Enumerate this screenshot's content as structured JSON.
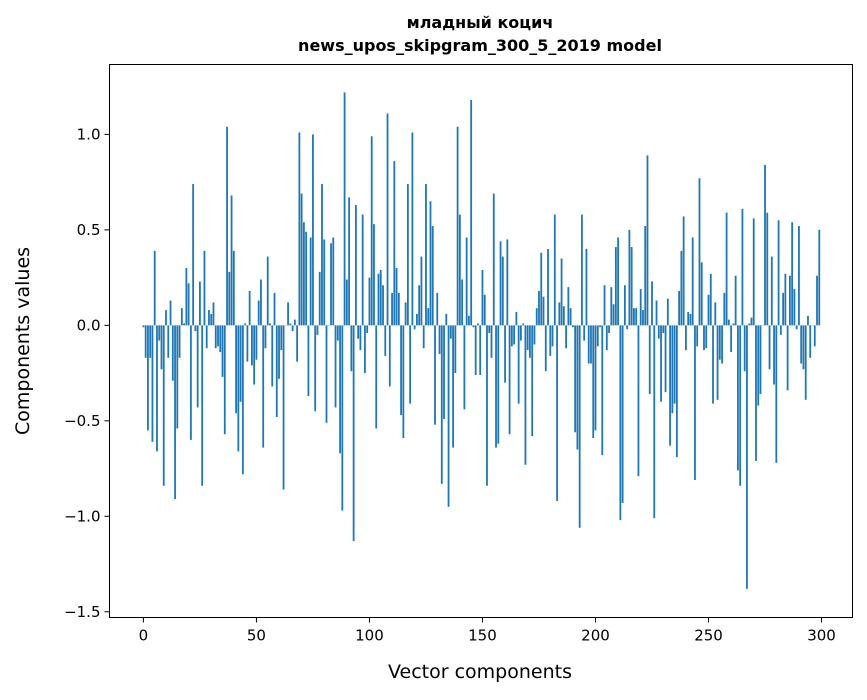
{
  "chart_data": {
    "type": "bar",
    "title": "младный коцич",
    "subtitle": "news_upos_skipgram_300_5_2019 model",
    "xlabel": "Vector components",
    "ylabel": "Components values",
    "xlim": [
      -15,
      313.7
    ],
    "ylim": [
      -1.53,
      1.366
    ],
    "xticks": [
      0,
      50,
      100,
      150,
      200,
      250,
      300
    ],
    "xtick_labels": [
      "0",
      "50",
      "100",
      "150",
      "200",
      "250",
      "300"
    ],
    "yticks": [
      -1.5,
      -1.0,
      -0.5,
      0.0,
      0.5,
      1.0
    ],
    "ytick_labels": [
      "−1.5",
      "−1.0",
      "−0.5",
      "0.0",
      "0.5",
      "1.0"
    ],
    "grid": false,
    "bar_color": "#1f77b4",
    "values": [
      -0.01,
      -0.17,
      -0.55,
      -0.17,
      -0.61,
      0.39,
      -0.66,
      -0.08,
      -0.23,
      -0.84,
      0.08,
      -0.17,
      0.13,
      -0.29,
      -0.91,
      -0.54,
      -0.17,
      0.09,
      0.01,
      0.3,
      0.22,
      -0.6,
      0.74,
      -0.03,
      -0.43,
      0.23,
      -0.84,
      0.39,
      -0.12,
      0.08,
      0.06,
      0.12,
      -0.12,
      -0.11,
      -0.14,
      -0.27,
      -0.57,
      1.04,
      0.28,
      0.68,
      0.39,
      -0.46,
      -0.66,
      -0.4,
      -0.78,
      0.01,
      -0.19,
      0.18,
      -0.21,
      -0.31,
      -0.18,
      0.13,
      0.24,
      -0.64,
      -0.12,
      0.36,
      0.01,
      -0.32,
      0.17,
      -0.48,
      -0.28,
      -0.13,
      -0.86,
      0.0,
      0.12,
      0.01,
      -0.03,
      0.03,
      -0.19,
      1.01,
      0.69,
      0.54,
      0.49,
      -0.37,
      0.46,
      1.0,
      -0.45,
      -0.05,
      0.28,
      0.74,
      0.45,
      -0.51,
      0.0,
      0.43,
      0.46,
      -0.43,
      -0.08,
      -0.67,
      -0.97,
      1.22,
      0.24,
      0.67,
      -0.24,
      -1.13,
      0.63,
      -0.07,
      -0.13,
      0.58,
      -0.25,
      -0.04,
      0.25,
      0.99,
      0.53,
      -0.54,
      0.27,
      0.29,
      0.21,
      -0.16,
      1.11,
      -0.32,
      0.17,
      0.86,
      0.3,
      0.17,
      -0.47,
      -0.59,
      0.12,
      0.74,
      -0.41,
      1.01,
      -0.02,
      0.06,
      0.21,
      0.36,
      -0.12,
      0.74,
      0.09,
      0.65,
      0.52,
      -0.52,
      0.17,
      -0.15,
      -0.83,
      -0.49,
      0.06,
      -0.95,
      -0.07,
      -0.64,
      -0.25,
      1.04,
      0.58,
      0.24,
      -0.44,
      0.46,
      0.05,
      1.18,
      -0.01,
      -0.26,
      0.01,
      -0.26,
      0.29,
      0.16,
      -0.84,
      -0.04,
      -0.17,
      0.69,
      -0.64,
      -0.62,
      0.44,
      0.36,
      -0.3,
      0.45,
      -0.57,
      -0.11,
      -0.1,
      0.07,
      -0.41,
      -0.08,
      0.01,
      -0.73,
      -0.13,
      -0.17,
      -0.58,
      -0.1,
      0.09,
      0.18,
      0.38,
      0.15,
      -0.24,
      0.4,
      -0.16,
      -0.11,
      0.58,
      -0.92,
      0.12,
      0.35,
      0.1,
      -0.12,
      0.2,
      0.09,
      -0.01,
      -0.56,
      -0.65,
      -1.06,
      0.58,
      -0.08,
      0.4,
      -0.2,
      -0.2,
      -0.59,
      -0.55,
      -0.11,
      -0.01,
      -0.68,
      0.21,
      -0.13,
      -0.04,
      0.2,
      0.11,
      0.41,
      0.46,
      -1.02,
      -0.93,
      0.21,
      -0.02,
      0.5,
      0.41,
      0.09,
      0.09,
      -0.79,
      0.19,
      0.08,
      0.52,
      0.89,
      -0.36,
      0.23,
      -1.01,
      0.13,
      -0.07,
      -0.4,
      -0.04,
      -0.35,
      0.14,
      -0.63,
      -0.46,
      -0.41,
      -0.69,
      0.18,
      0.39,
      0.57,
      -0.13,
      0.07,
      0.06,
      0.46,
      -0.81,
      -0.11,
      0.77,
      0.33,
      -0.13,
      -0.12,
      0.16,
      0.27,
      -0.41,
      0.12,
      -0.39,
      -0.18,
      -0.2,
      0.17,
      0.59,
      0.03,
      -0.14,
      0.01,
      0.26,
      -0.76,
      -0.84,
      0.61,
      -0.24,
      -1.38,
      0.01,
      0.04,
      0.56,
      -0.71,
      -0.42,
      -0.36,
      0.0,
      0.84,
      0.59,
      -0.23,
      0.36,
      -0.31,
      -0.72,
      0.55,
      -0.05,
      0.17,
      0.27,
      -0.34,
      0.26,
      0.54,
      0.19,
      -0.02,
      0.52,
      -0.2,
      -0.23,
      -0.39,
      0.05,
      -0.17,
      0.0,
      -0.11,
      0.26,
      0.5
    ]
  }
}
